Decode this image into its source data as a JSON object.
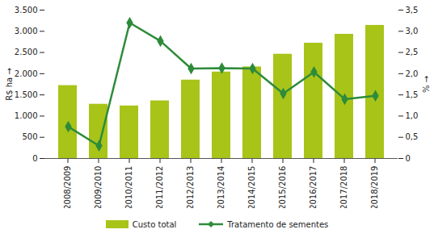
{
  "chart_data": {
    "type": "bar",
    "categories": [
      "2008/2009",
      "2009/2010",
      "2010/2011",
      "2011/2012",
      "2012/2013",
      "2013/2014",
      "2014/2015",
      "2015/2016",
      "2016/2017",
      "2017/2018",
      "2018/2019"
    ],
    "y_label": "R$ ha",
    "y2_label": "%",
    "ylim": [
      0,
      3500
    ],
    "yticks": [
      0,
      500,
      {
        "value": 1000,
        "label": "1.000"
      },
      {
        "value": 1500,
        "label": "1.500"
      },
      {
        "value": 2000,
        "label": "2.000"
      },
      {
        "value": 2500,
        "label": "2.500"
      },
      {
        "value": 3000,
        "label": "3.000"
      },
      {
        "value": 3500,
        "label": "3.500"
      }
    ],
    "y2lim": [
      0,
      3.5
    ],
    "y2ticks": [
      0,
      {
        "value": 0.5,
        "label": "0,5"
      },
      {
        "value": 1,
        "label": "1,0"
      },
      {
        "value": 1.5,
        "label": "1,5"
      },
      {
        "value": 2,
        "label": "2,0"
      },
      {
        "value": 2.5,
        "label": "2,5"
      },
      {
        "value": 3,
        "label": "3,0"
      },
      {
        "value": 3.5,
        "label": "3,5"
      }
    ],
    "legend": "bottom",
    "series": [
      {
        "name": "Custo total",
        "type": "bar",
        "color": "#a8c418",
        "values": [
          1720,
          1280,
          1240,
          1360,
          1850,
          2040,
          2160,
          2460,
          2720,
          2930,
          3140
        ]
      },
      {
        "name": "Tratamento de sementes",
        "type": "line",
        "axis": "y2",
        "color": "#2e8b3a",
        "marker": "diamond",
        "values": [
          0.75,
          0.3,
          3.2,
          2.77,
          2.12,
          2.13,
          2.12,
          1.53,
          2.04,
          1.4,
          1.48
        ]
      }
    ]
  }
}
